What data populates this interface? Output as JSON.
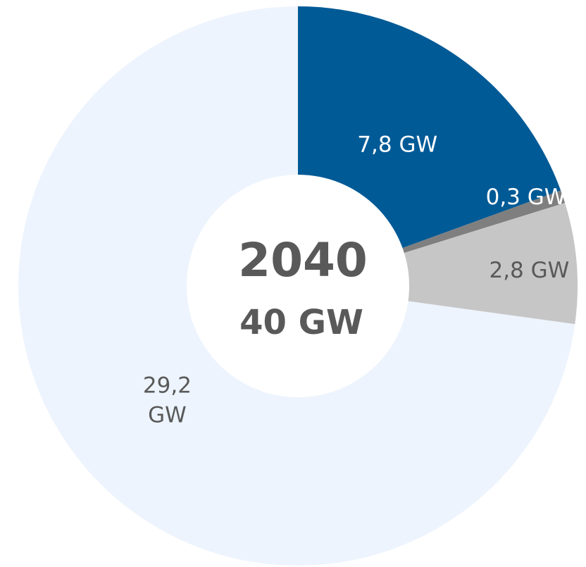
{
  "chart_data": {
    "type": "pie",
    "title": "",
    "center_label": "2040",
    "center_total": "40 GW",
    "slices": [
      {
        "value": 7.8,
        "label": "7,8 GW",
        "color": "#005a96",
        "label_color": "#ffffff"
      },
      {
        "value": 0.3,
        "label": "0,3 GW",
        "color": "#7f7f7f",
        "label_color": "#ffffff"
      },
      {
        "value": 2.8,
        "label": "2,8 GW",
        "color": "#c6c6c6",
        "label_color": "#595959"
      },
      {
        "value": 29.2,
        "label": "29,2 GW",
        "label_lines": [
          "29,2",
          "GW"
        ],
        "color": "#edf4fd",
        "label_color": "#595959"
      }
    ],
    "total": 40
  }
}
